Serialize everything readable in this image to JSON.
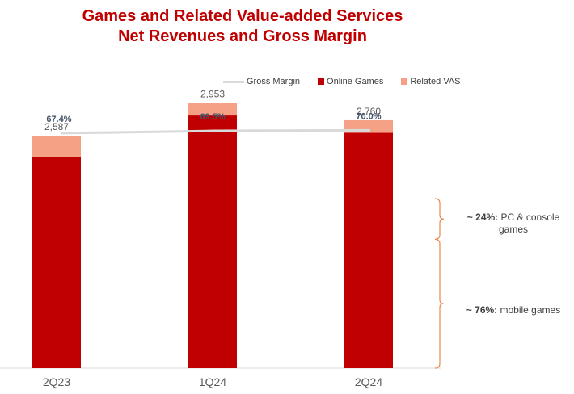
{
  "title_line1": "Games and Related Value-added Services",
  "title_line2": "Net Revenues and Gross Margin",
  "chart_data": {
    "type": "bar",
    "stacked": true,
    "categories": [
      "2Q23",
      "1Q24",
      "2Q24"
    ],
    "totals": [
      "2,587",
      "2,953",
      "2,760"
    ],
    "series": [
      {
        "name": "Online Games",
        "values": [
          2347,
          2813,
          2620
        ],
        "color": "#c00000"
      },
      {
        "name": "Related VAS",
        "values": [
          240,
          140,
          140
        ],
        "color": "#f4a185"
      }
    ],
    "line_series": {
      "name": "Gross Margin",
      "values": [
        67.4,
        69.5,
        70.0
      ],
      "labels": [
        "67.4%",
        "69.5%",
        "70.0%"
      ],
      "color": "#d9d9d9",
      "ylim": [
        60,
        80
      ]
    },
    "ylim": [
      0,
      3200
    ],
    "legend_position": "top",
    "annotations": {
      "pc": {
        "pct": "~ 24%:",
        "text": "PC & console games",
        "share": 24
      },
      "mobile": {
        "pct": "~ 76%:",
        "text": "mobile games",
        "share": 76
      },
      "bracket_color": "#e8894a"
    }
  }
}
